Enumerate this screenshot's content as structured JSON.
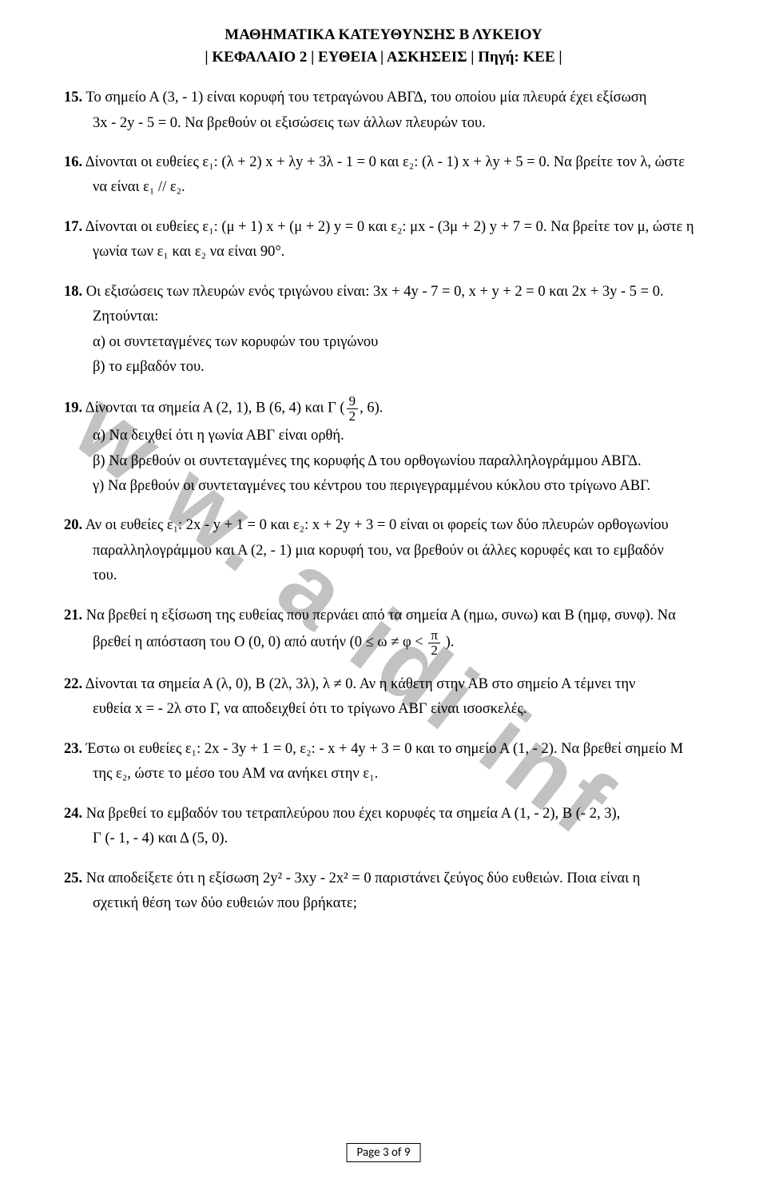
{
  "header": {
    "line1": "ΜΑΘΗΜΑΤΙΚΑ ΚΑΤΕΥΘΥΝΣΗΣ Β ΛΥΚΕΙΟΥ",
    "line2": "| ΚΕΦΑΛΑΙΟ 2 | ΕΥΘΕΙΑ | ΑΣΚΗΣΕΙΣ | Πηγή: ΚΕΕ |"
  },
  "watermark": "w w. a idi inf",
  "footer": "Page 3 of 9",
  "ex15": {
    "num": "15.",
    "l1a": "Το σημείο Α (3, - 1) είναι κορυφή του τετραγώνου ΑΒΓΔ, του οποίου μία πλευρά έχει εξίσωση",
    "l1b": "3x - 2y - 5 = 0. Να βρεθούν οι εξισώσεις των άλλων πλευρών του."
  },
  "ex16": {
    "num": "16.",
    "l1": "Δίνονται οι ευθείες ε₁: (λ + 2) x + λy + 3λ - 1 = 0 και ε₂: (λ - 1) x + λy + 5 = 0. Να βρείτε τον λ, ώστε",
    "l2": "να είναι ε₁ // ε₂."
  },
  "ex17": {
    "num": "17.",
    "l1": "Δίνονται οι ευθείες ε₁: (μ + 1) x + (μ + 2) y = 0 και ε₂: μx - (3μ + 2) y + 7 = 0. Να βρείτε τον μ, ώστε η",
    "l2": "γωνία των ε₁ και ε₂ να είναι 90°."
  },
  "ex18": {
    "num": "18.",
    "l1": "Οι εξισώσεις των πλευρών ενός τριγώνου είναι: 3x + 4y - 7 = 0, x + y + 2 = 0 και 2x + 3y - 5 = 0.",
    "l2": "Ζητούνται:",
    "a": "α) οι συντεταγμένες των κορυφών του τριγώνου",
    "b": "β) το εμβαδόν του."
  },
  "ex19": {
    "num": "19.",
    "l1_pre": "Δίνονται τα σημεία Α (2, 1), Β (6, 4) και Γ (",
    "frac_num": "9",
    "frac_den": "2",
    "l1_post": ", 6).",
    "a": "α) Να δειχθεί ότι η γωνία ΑΒΓ είναι ορθή.",
    "b": "β) Να βρεθούν οι συντεταγμένες της κορυφής Δ του ορθογωνίου παραλληλογράμμου ΑΒΓΔ.",
    "c": "γ) Να βρεθούν οι συντεταγμένες του κέντρου του περιγεγραμμένου κύκλου στο τρίγωνο ΑΒΓ."
  },
  "ex20": {
    "num": "20.",
    "l1": "Αν οι ευθείες ε₁: 2x - y + 1 = 0 και ε₂: x + 2y + 3 = 0 είναι οι φορείς των δύο πλευρών ορθογωνίου",
    "l2": "παραλληλογράμμου και Α (2, - 1) μια κορυφή του, να βρεθούν οι άλλες κορυφές και το εμβαδόν",
    "l3": "του."
  },
  "ex21": {
    "num": "21.",
    "l1": "Να βρεθεί η εξίσωση της ευθείας που περνάει από τα σημεία Α (ημω, συνω) και Β (ημφ, συνφ). Να",
    "l2_pre": "βρεθεί η απόσταση του Ο (0, 0) από αυτήν (0 ≤ ω ≠ φ < ",
    "frac_num": "π",
    "frac_den": "2",
    "l2_post": " )."
  },
  "ex22": {
    "num": "22.",
    "l1": "Δίνονται τα σημεία Α (λ, 0), Β (2λ, 3λ), λ ≠ 0. Αν η κάθετη στην ΑΒ στο σημείο Α τέμνει την",
    "l2": "ευθεία x = - 2λ στο Γ, να αποδειχθεί ότι το τρίγωνο ΑΒΓ είναι ισοσκελές."
  },
  "ex23": {
    "num": "23.",
    "l1": "Έστω οι ευθείες ε₁: 2x - 3y + 1 = 0, ε₂: - x + 4y + 3 = 0 και το σημείο Α (1, - 2). Να βρεθεί σημείο Μ",
    "l2": "της ε₂, ώστε το μέσο του ΑΜ να ανήκει στην ε₁."
  },
  "ex24": {
    "num": "24.",
    "l1": "Να βρεθεί το εμβαδόν του τετραπλεύρου που έχει κορυφές τα σημεία Α (1, - 2), Β (- 2, 3),",
    "l2": "Γ (- 1, - 4) και Δ (5, 0)."
  },
  "ex25": {
    "num": "25.",
    "l1": "Να αποδείξετε ότι η εξίσωση 2y² - 3xy - 2x² = 0 παριστάνει ζεύγος δύο ευθειών. Ποια είναι η",
    "l2": "σχετική θέση των δύο ευθειών που βρήκατε;"
  }
}
